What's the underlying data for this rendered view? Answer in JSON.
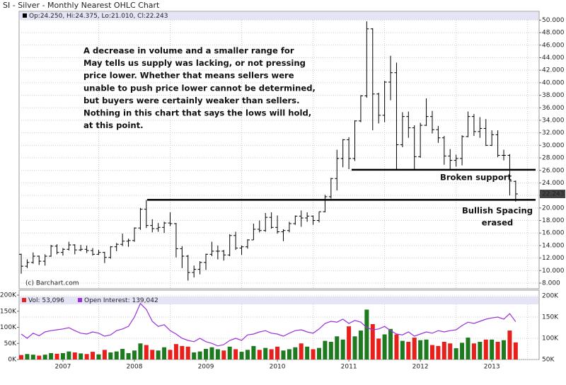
{
  "chart_data": [
    {
      "type": "ohlc",
      "title": "SI - Silver - Monthly Nearest OHLC Chart",
      "header": "Op:24.250, Hi:24.375, Lo:21.010, Cl:22.243",
      "categories": [
        null,
        null,
        null,
        null,
        null,
        null,
        null,
        "2007",
        null,
        null,
        null,
        null,
        null,
        null,
        null,
        null,
        null,
        null,
        null,
        "2008",
        null,
        null,
        null,
        null,
        null,
        null,
        null,
        null,
        null,
        null,
        null,
        "2009",
        null,
        null,
        null,
        null,
        null,
        null,
        null,
        null,
        null,
        null,
        null,
        "2010",
        null,
        null,
        null,
        null,
        null,
        null,
        null,
        null,
        null,
        null,
        null,
        "2011",
        null,
        null,
        null,
        null,
        null,
        null,
        null,
        null,
        null,
        null,
        null,
        "2012",
        null,
        null,
        null,
        null,
        null,
        null,
        null,
        null,
        null,
        null,
        null,
        "2013",
        null,
        null,
        null,
        null
      ],
      "open": [
        12.6,
        10.7,
        11.3,
        12.3,
        11.5,
        12.3,
        13.9,
        12.9,
        13.4,
        14.1,
        13.3,
        13.4,
        13.2,
        12.6,
        12.9,
        12.1,
        13.8,
        14.2,
        14.7,
        14.8,
        16.8,
        19.8,
        17.2,
        16.7,
        16.9,
        17.6,
        17.5,
        13.5,
        12.3,
        9.7,
        10.2,
        11.3,
        12.6,
        13.1,
        13.1,
        12.5,
        15.6,
        13.6,
        13.8,
        14.9,
        16.6,
        16.4,
        18.5,
        16.9,
        16.2,
        16.4,
        17.5,
        18.7,
        18.4,
        18.7,
        18.0,
        19.4,
        21.8,
        24.7,
        27.9,
        30.9,
        27.9,
        33.9,
        37.9,
        48.6,
        38.2,
        34.8,
        40.1,
        41.6,
        30.1,
        34.6,
        32.8,
        28.2,
        33.2,
        34.6,
        32.5,
        31.2,
        28.3,
        27.6,
        27.9,
        31.4,
        34.6,
        32.2,
        32.7,
        30.0,
        31.7,
        28.4,
        28.4,
        24.25
      ],
      "high": [
        12.7,
        11.8,
        12.9,
        12.4,
        12.6,
        14.1,
        14.2,
        13.6,
        14.6,
        14.2,
        14.1,
        14.0,
        13.6,
        13.3,
        13.0,
        13.9,
        14.4,
        15.9,
        15.1,
        16.9,
        20.0,
        21.3,
        18.2,
        17.6,
        17.8,
        19.3,
        17.6,
        13.9,
        12.5,
        10.8,
        11.5,
        12.7,
        14.6,
        14.0,
        13.3,
        15.8,
        16.2,
        14.0,
        15.0,
        17.5,
        18.0,
        19.2,
        19.3,
        18.8,
        16.6,
        17.8,
        18.8,
        19.6,
        19.3,
        18.8,
        19.4,
        22.1,
        24.8,
        29.3,
        31.0,
        31.3,
        34.0,
        38.0,
        49.8,
        48.7,
        38.4,
        40.3,
        44.3,
        43.2,
        35.3,
        35.4,
        33.2,
        33.6,
        37.5,
        35.5,
        33.1,
        31.5,
        29.4,
        28.5,
        31.6,
        35.4,
        35.0,
        34.5,
        34.2,
        32.4,
        32.4,
        29.3,
        28.6,
        24.375
      ],
      "low": [
        9.5,
        10.4,
        11.1,
        10.9,
        10.8,
        12.2,
        12.6,
        12.4,
        13.2,
        12.6,
        13.1,
        12.8,
        12.4,
        12.5,
        11.2,
        11.9,
        13.1,
        13.9,
        13.8,
        14.6,
        16.5,
        16.8,
        16.1,
        16.2,
        16.0,
        17.1,
        12.1,
        10.4,
        8.4,
        8.9,
        9.4,
        10.1,
        12.3,
        11.8,
        11.6,
        12.3,
        13.3,
        12.5,
        13.5,
        14.9,
        16.1,
        16.2,
        16.7,
        15.9,
        14.7,
        16.1,
        17.3,
        17.0,
        17.8,
        17.3,
        17.7,
        19.3,
        21.5,
        22.8,
        26.5,
        26.2,
        27.5,
        33.7,
        37.6,
        32.4,
        33.5,
        33.7,
        37.2,
        26.1,
        29.7,
        31.2,
        26.2,
        28.0,
        33.1,
        31.9,
        30.4,
        26.9,
        26.1,
        26.6,
        26.8,
        31.3,
        31.5,
        31.2,
        29.9,
        29.9,
        28.1,
        27.6,
        22.0,
        21.01
      ],
      "close": [
        10.7,
        11.3,
        12.3,
        11.5,
        12.3,
        13.9,
        12.9,
        13.4,
        14.1,
        13.3,
        13.4,
        13.2,
        12.6,
        12.9,
        12.1,
        13.8,
        14.2,
        14.7,
        14.8,
        16.8,
        19.8,
        17.2,
        16.7,
        16.9,
        17.6,
        17.5,
        13.5,
        12.3,
        9.7,
        10.2,
        11.3,
        12.6,
        13.1,
        13.1,
        12.5,
        15.6,
        13.6,
        13.8,
        14.9,
        16.6,
        16.4,
        18.5,
        16.9,
        16.2,
        16.4,
        17.5,
        18.7,
        18.4,
        18.7,
        18.0,
        19.4,
        21.8,
        24.7,
        27.9,
        30.9,
        27.9,
        33.9,
        37.9,
        48.6,
        38.2,
        34.8,
        40.1,
        41.6,
        30.1,
        34.6,
        32.8,
        28.2,
        33.2,
        34.6,
        32.5,
        31.2,
        28.3,
        27.6,
        27.9,
        31.4,
        34.6,
        32.2,
        32.7,
        30.0,
        31.7,
        28.4,
        28.4,
        24.3,
        22.243
      ],
      "color": "#000000",
      "ylim": [
        7.1,
        51.4
      ],
      "yticks": [
        {
          "value": 8,
          "label": "8.000"
        },
        {
          "value": 10,
          "label": "10.000"
        },
        {
          "value": 12,
          "label": "12.000"
        },
        {
          "value": 14,
          "label": "14.000"
        },
        {
          "value": 16,
          "label": "16.000"
        },
        {
          "value": 18,
          "label": "18.000"
        },
        {
          "value": 20,
          "label": "20.000"
        },
        {
          "value": 22,
          "label": "22.000"
        },
        {
          "value": 24,
          "label": "24.000"
        },
        {
          "value": 26,
          "label": "26.000"
        },
        {
          "value": 28,
          "label": "28.000"
        },
        {
          "value": 30,
          "label": "30.000"
        },
        {
          "value": 32,
          "label": "32.000"
        },
        {
          "value": 34,
          "label": "34.000"
        },
        {
          "value": 36,
          "label": "36.000"
        },
        {
          "value": 38,
          "label": "38.000"
        },
        {
          "value": 40,
          "label": "40.000"
        },
        {
          "value": 42,
          "label": "42.000"
        },
        {
          "value": 44,
          "label": "44.000"
        },
        {
          "value": 46,
          "label": "46.000"
        },
        {
          "value": 48,
          "label": "48.000"
        },
        {
          "value": 50,
          "label": "50.000"
        }
      ],
      "grid": true,
      "annotation_lines": [
        "A decrease in volume and a smaller range for",
        "May tells us supply was lacking, or not pressing",
        "price lower.  Whether that means sellers were",
        "unable to push price lower cannot be determined,",
        "but buyers were certainly weaker than sellers.",
        "Nothing in this chart that says the lows will hold,",
        "at this point."
      ],
      "support_label": "Broken support",
      "spacing_label": [
        "Bullish Spacing",
        "erased"
      ],
      "levels": [
        26.1,
        21.3
      ],
      "credit": "(c) Barchart.com"
    },
    {
      "type": "bar",
      "ylim": [
        0,
        200000
      ],
      "yticks": [
        {
          "value": 0,
          "label": "0K"
        },
        {
          "value": 50000,
          "label": "50K"
        },
        {
          "value": 100000,
          "label": "100K"
        },
        {
          "value": 150000,
          "label": "150K"
        },
        {
          "value": 200000,
          "label": "200K"
        }
      ],
      "y2lim": [
        50000,
        200000
      ],
      "y2ticks": [
        {
          "value": 50000,
          "label": "50K"
        },
        {
          "value": 100000,
          "label": "100K"
        },
        {
          "value": 150000,
          "label": "150K"
        },
        {
          "value": 200000,
          "label": "200K"
        }
      ],
      "series": [
        {
          "name": "Vol: 53,096",
          "up_color": "#1e7a1e",
          "down_color": "#e8201c",
          "values": [
            14000,
            17000,
            15000,
            12000,
            15000,
            20000,
            18000,
            20000,
            25000,
            22000,
            19000,
            17000,
            24000,
            16000,
            30000,
            22000,
            25000,
            33000,
            20000,
            28000,
            50000,
            45000,
            30000,
            28000,
            38000,
            30000,
            48000,
            42000,
            40000,
            22000,
            25000,
            33000,
            38000,
            32000,
            28000,
            40000,
            32000,
            24000,
            30000,
            42000,
            30000,
            36000,
            32000,
            40000,
            28000,
            32000,
            38000,
            50000,
            40000,
            32000,
            36000,
            58000,
            55000,
            72000,
            62000,
            103000,
            72000,
            90000,
            155000,
            110000,
            65000,
            78000,
            95000,
            78000,
            58000,
            55000,
            68000,
            60000,
            62000,
            45000,
            42000,
            55000,
            50000,
            35000,
            52000,
            68000,
            50000,
            55000,
            62000,
            62000,
            55000,
            60000,
            90000,
            53096
          ]
        },
        {
          "name": "Open Interest: 139,042",
          "type": "line",
          "axis": "y2",
          "color": "#9b30d9",
          "values": [
            110000,
            100000,
            112000,
            106000,
            115000,
            118000,
            120000,
            122000,
            125000,
            118000,
            112000,
            110000,
            115000,
            112000,
            105000,
            108000,
            118000,
            122000,
            128000,
            150000,
            182000,
            168000,
            140000,
            128000,
            132000,
            118000,
            110000,
            100000,
            95000,
            92000,
            100000,
            92000,
            88000,
            82000,
            85000,
            95000,
            100000,
            95000,
            108000,
            110000,
            115000,
            118000,
            112000,
            110000,
            105000,
            112000,
            118000,
            120000,
            115000,
            112000,
            122000,
            135000,
            140000,
            138000,
            145000,
            135000,
            142000,
            138000,
            125000,
            120000,
            122000,
            128000,
            118000,
            110000,
            108000,
            115000,
            105000,
            110000,
            115000,
            112000,
            118000,
            115000,
            118000,
            120000,
            130000,
            138000,
            135000,
            140000,
            145000,
            148000,
            150000,
            145000,
            158000,
            139042
          ]
        }
      ]
    }
  ]
}
